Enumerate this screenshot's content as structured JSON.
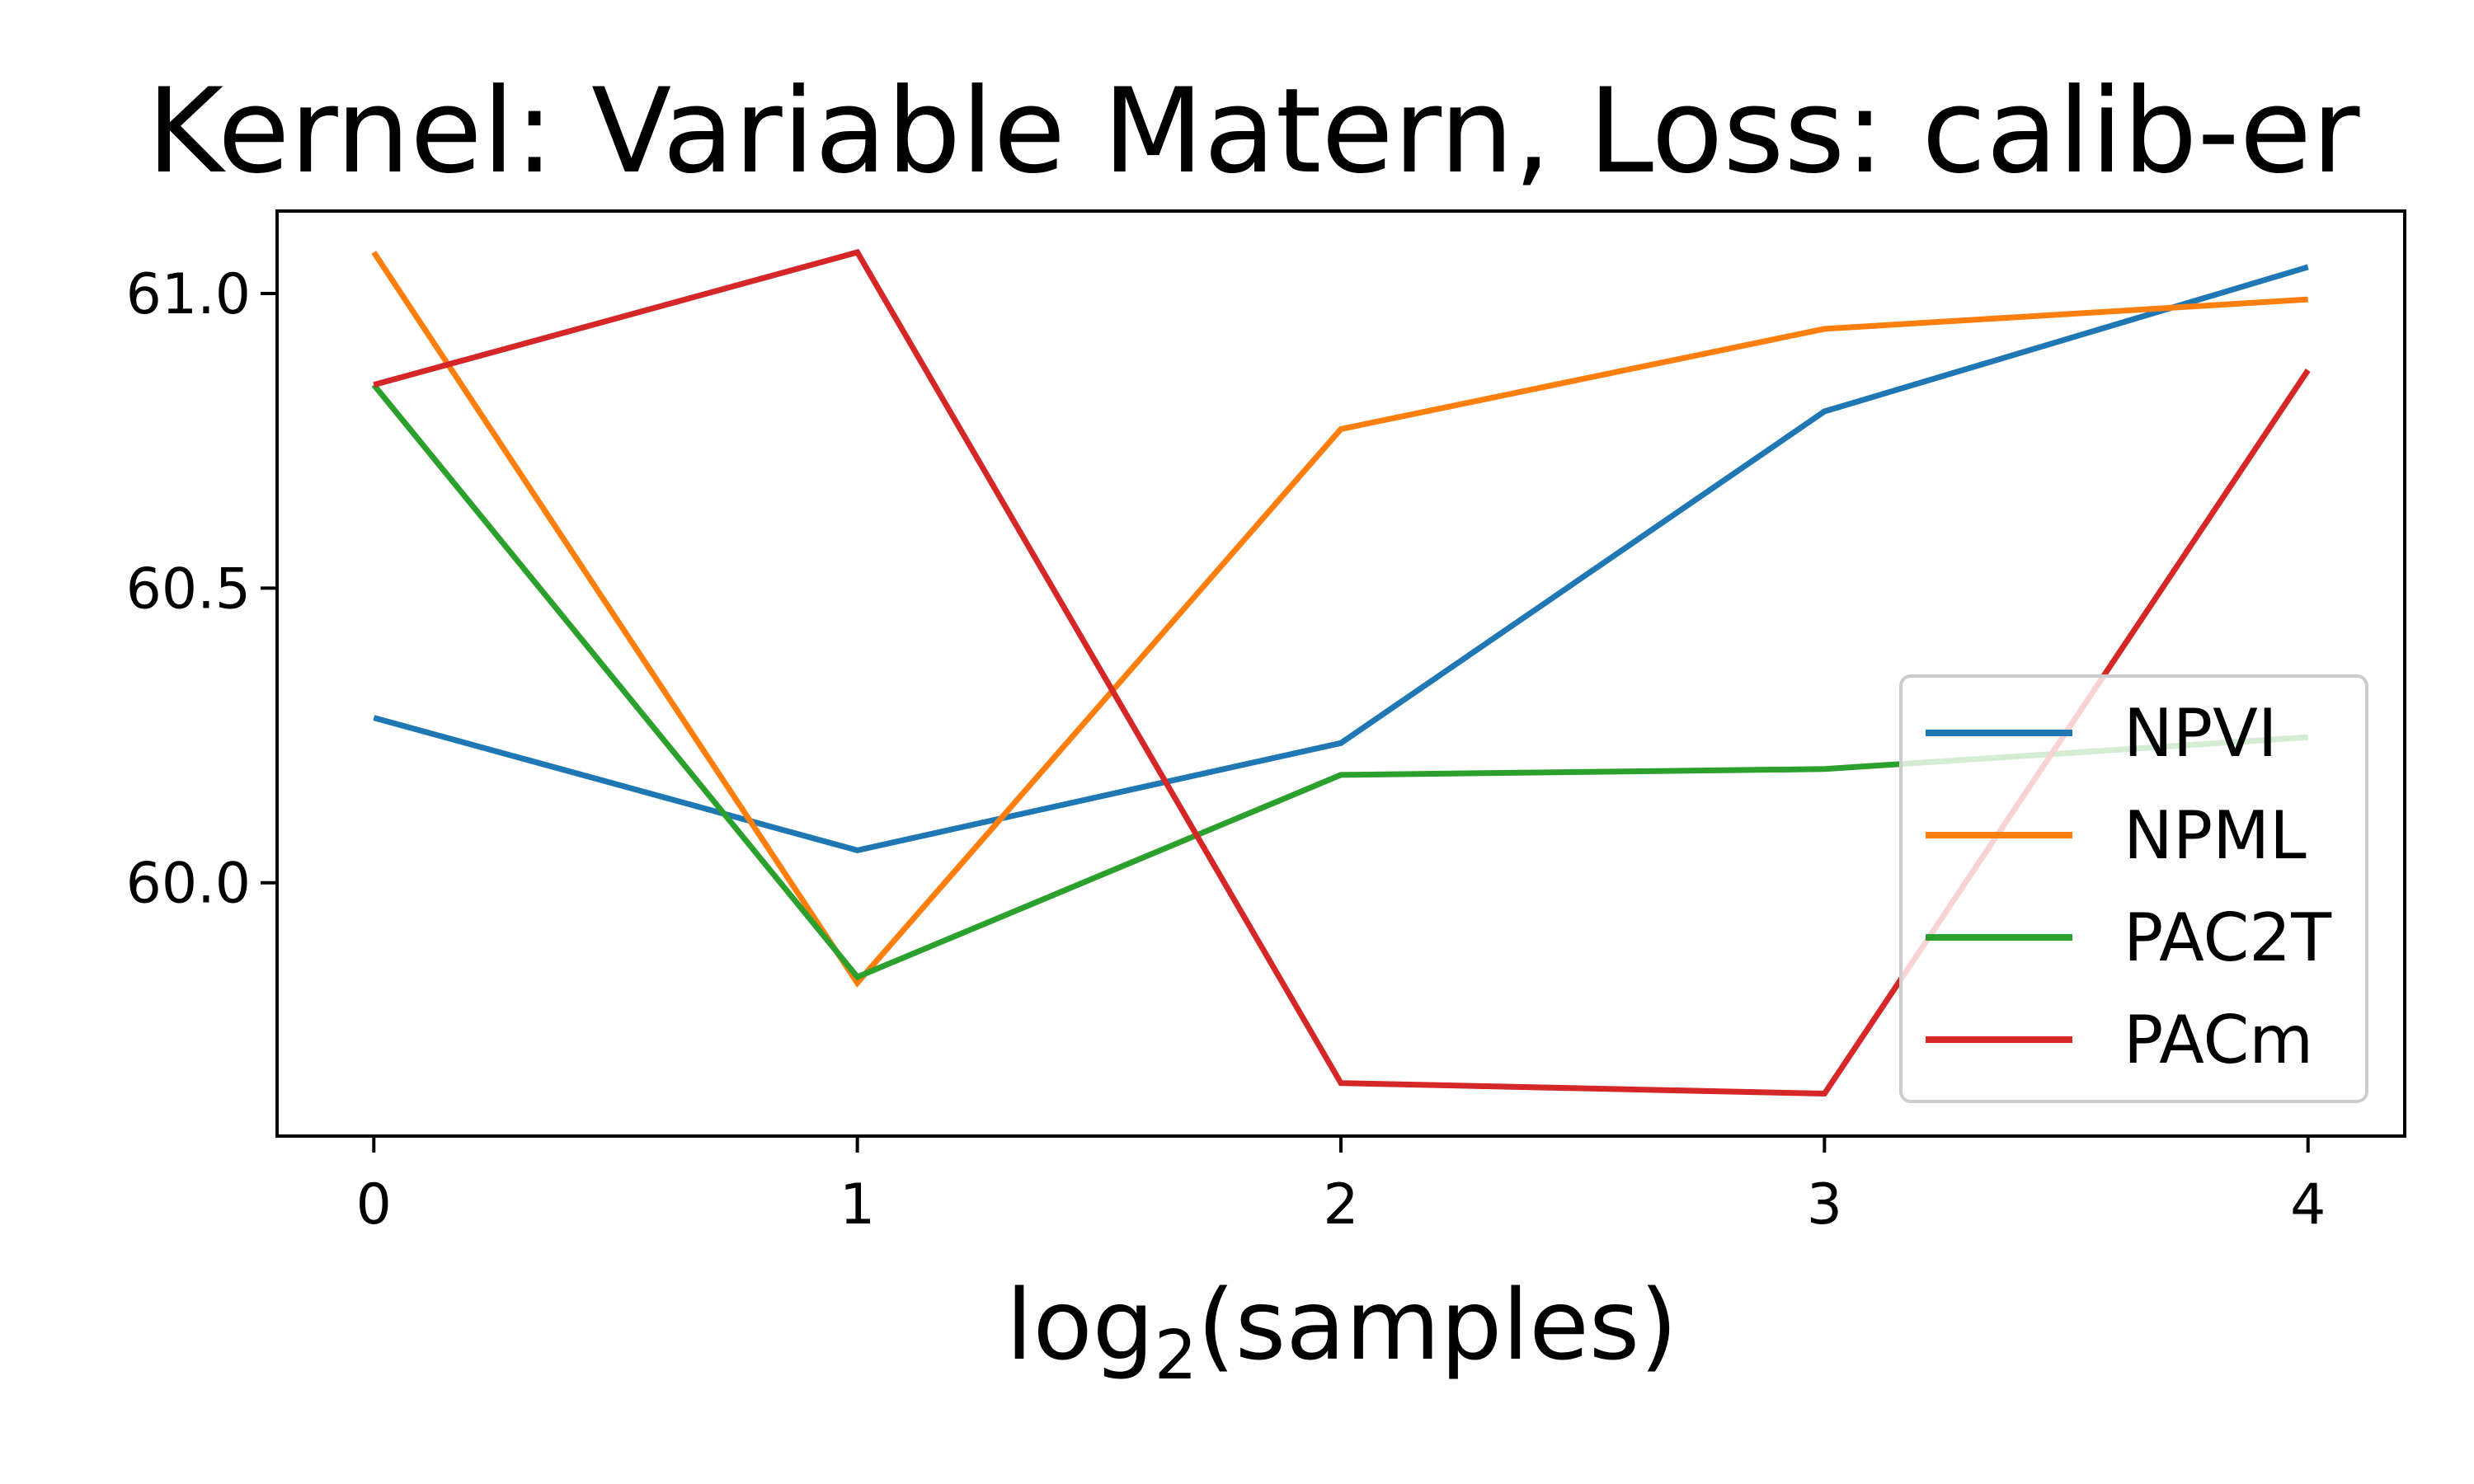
{
  "chart_data": {
    "type": "line",
    "title": "Kernel: Variable Matern, Loss: calib-er",
    "xlabel_main": "log",
    "xlabel_sub": "2",
    "xlabel_rest": "(samples)",
    "ylabel": "",
    "x": [
      0,
      1,
      2,
      3,
      4
    ],
    "xticks": [
      {
        "value": 0,
        "label": "0"
      },
      {
        "value": 1,
        "label": "1"
      },
      {
        "value": 2,
        "label": "2"
      },
      {
        "value": 3,
        "label": "3"
      },
      {
        "value": 4,
        "label": "4"
      }
    ],
    "yticks": [
      {
        "value": 60.0,
        "label": "60.0"
      },
      {
        "value": 60.5,
        "label": "60.5"
      },
      {
        "value": 61.0,
        "label": "61.0"
      }
    ],
    "xlim": [
      -0.2,
      4.2
    ],
    "ylim": [
      59.57,
      61.14
    ],
    "grid": false,
    "legend_position": "lower-right",
    "series": [
      {
        "name": "NPVI",
        "color": "#1f77b4",
        "values": [
          60.28,
          60.055,
          60.237,
          60.8,
          61.045
        ]
      },
      {
        "name": "NPML",
        "color": "#ff7f0e",
        "values": [
          61.07,
          59.83,
          60.77,
          60.94,
          60.99
        ]
      },
      {
        "name": "PAC2T",
        "color": "#2ca02c",
        "values": [
          60.845,
          59.84,
          60.183,
          60.193,
          60.247
        ]
      },
      {
        "name": "PACm",
        "color": "#d62728",
        "values": [
          60.845,
          61.07,
          59.66,
          59.642,
          60.87
        ]
      }
    ]
  }
}
